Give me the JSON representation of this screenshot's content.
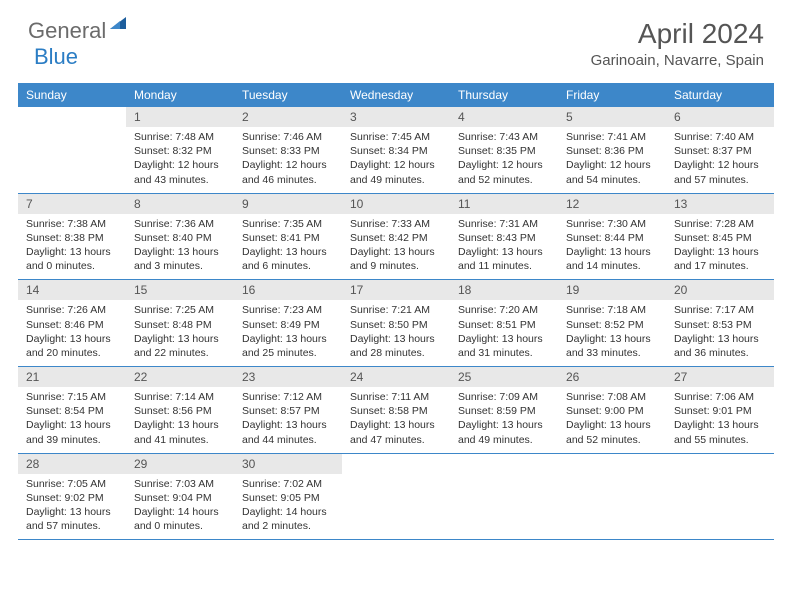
{
  "logo": {
    "gray": "General",
    "blue": "Blue"
  },
  "title": "April 2024",
  "location": "Garinoain, Navarre, Spain",
  "colors": {
    "header_bg": "#3d87c9",
    "header_text": "#ffffff",
    "daynum_bg": "#e8e8e8",
    "border": "#3d87c9",
    "logo_gray": "#6b6b6b",
    "logo_blue": "#2b7dc4"
  },
  "fonts": {
    "title_pt": 28,
    "location_pt": 15,
    "dayhead_pt": 12,
    "body_pt": 10.5
  },
  "day_headers": [
    "Sunday",
    "Monday",
    "Tuesday",
    "Wednesday",
    "Thursday",
    "Friday",
    "Saturday"
  ],
  "weeks": [
    [
      null,
      {
        "n": "1",
        "sr": "Sunrise: 7:48 AM",
        "ss": "Sunset: 8:32 PM",
        "dl": "Daylight: 12 hours and 43 minutes."
      },
      {
        "n": "2",
        "sr": "Sunrise: 7:46 AM",
        "ss": "Sunset: 8:33 PM",
        "dl": "Daylight: 12 hours and 46 minutes."
      },
      {
        "n": "3",
        "sr": "Sunrise: 7:45 AM",
        "ss": "Sunset: 8:34 PM",
        "dl": "Daylight: 12 hours and 49 minutes."
      },
      {
        "n": "4",
        "sr": "Sunrise: 7:43 AM",
        "ss": "Sunset: 8:35 PM",
        "dl": "Daylight: 12 hours and 52 minutes."
      },
      {
        "n": "5",
        "sr": "Sunrise: 7:41 AM",
        "ss": "Sunset: 8:36 PM",
        "dl": "Daylight: 12 hours and 54 minutes."
      },
      {
        "n": "6",
        "sr": "Sunrise: 7:40 AM",
        "ss": "Sunset: 8:37 PM",
        "dl": "Daylight: 12 hours and 57 minutes."
      }
    ],
    [
      {
        "n": "7",
        "sr": "Sunrise: 7:38 AM",
        "ss": "Sunset: 8:38 PM",
        "dl": "Daylight: 13 hours and 0 minutes."
      },
      {
        "n": "8",
        "sr": "Sunrise: 7:36 AM",
        "ss": "Sunset: 8:40 PM",
        "dl": "Daylight: 13 hours and 3 minutes."
      },
      {
        "n": "9",
        "sr": "Sunrise: 7:35 AM",
        "ss": "Sunset: 8:41 PM",
        "dl": "Daylight: 13 hours and 6 minutes."
      },
      {
        "n": "10",
        "sr": "Sunrise: 7:33 AM",
        "ss": "Sunset: 8:42 PM",
        "dl": "Daylight: 13 hours and 9 minutes."
      },
      {
        "n": "11",
        "sr": "Sunrise: 7:31 AM",
        "ss": "Sunset: 8:43 PM",
        "dl": "Daylight: 13 hours and 11 minutes."
      },
      {
        "n": "12",
        "sr": "Sunrise: 7:30 AM",
        "ss": "Sunset: 8:44 PM",
        "dl": "Daylight: 13 hours and 14 minutes."
      },
      {
        "n": "13",
        "sr": "Sunrise: 7:28 AM",
        "ss": "Sunset: 8:45 PM",
        "dl": "Daylight: 13 hours and 17 minutes."
      }
    ],
    [
      {
        "n": "14",
        "sr": "Sunrise: 7:26 AM",
        "ss": "Sunset: 8:46 PM",
        "dl": "Daylight: 13 hours and 20 minutes."
      },
      {
        "n": "15",
        "sr": "Sunrise: 7:25 AM",
        "ss": "Sunset: 8:48 PM",
        "dl": "Daylight: 13 hours and 22 minutes."
      },
      {
        "n": "16",
        "sr": "Sunrise: 7:23 AM",
        "ss": "Sunset: 8:49 PM",
        "dl": "Daylight: 13 hours and 25 minutes."
      },
      {
        "n": "17",
        "sr": "Sunrise: 7:21 AM",
        "ss": "Sunset: 8:50 PM",
        "dl": "Daylight: 13 hours and 28 minutes."
      },
      {
        "n": "18",
        "sr": "Sunrise: 7:20 AM",
        "ss": "Sunset: 8:51 PM",
        "dl": "Daylight: 13 hours and 31 minutes."
      },
      {
        "n": "19",
        "sr": "Sunrise: 7:18 AM",
        "ss": "Sunset: 8:52 PM",
        "dl": "Daylight: 13 hours and 33 minutes."
      },
      {
        "n": "20",
        "sr": "Sunrise: 7:17 AM",
        "ss": "Sunset: 8:53 PM",
        "dl": "Daylight: 13 hours and 36 minutes."
      }
    ],
    [
      {
        "n": "21",
        "sr": "Sunrise: 7:15 AM",
        "ss": "Sunset: 8:54 PM",
        "dl": "Daylight: 13 hours and 39 minutes."
      },
      {
        "n": "22",
        "sr": "Sunrise: 7:14 AM",
        "ss": "Sunset: 8:56 PM",
        "dl": "Daylight: 13 hours and 41 minutes."
      },
      {
        "n": "23",
        "sr": "Sunrise: 7:12 AM",
        "ss": "Sunset: 8:57 PM",
        "dl": "Daylight: 13 hours and 44 minutes."
      },
      {
        "n": "24",
        "sr": "Sunrise: 7:11 AM",
        "ss": "Sunset: 8:58 PM",
        "dl": "Daylight: 13 hours and 47 minutes."
      },
      {
        "n": "25",
        "sr": "Sunrise: 7:09 AM",
        "ss": "Sunset: 8:59 PM",
        "dl": "Daylight: 13 hours and 49 minutes."
      },
      {
        "n": "26",
        "sr": "Sunrise: 7:08 AM",
        "ss": "Sunset: 9:00 PM",
        "dl": "Daylight: 13 hours and 52 minutes."
      },
      {
        "n": "27",
        "sr": "Sunrise: 7:06 AM",
        "ss": "Sunset: 9:01 PM",
        "dl": "Daylight: 13 hours and 55 minutes."
      }
    ],
    [
      {
        "n": "28",
        "sr": "Sunrise: 7:05 AM",
        "ss": "Sunset: 9:02 PM",
        "dl": "Daylight: 13 hours and 57 minutes."
      },
      {
        "n": "29",
        "sr": "Sunrise: 7:03 AM",
        "ss": "Sunset: 9:04 PM",
        "dl": "Daylight: 14 hours and 0 minutes."
      },
      {
        "n": "30",
        "sr": "Sunrise: 7:02 AM",
        "ss": "Sunset: 9:05 PM",
        "dl": "Daylight: 14 hours and 2 minutes."
      },
      null,
      null,
      null,
      null
    ]
  ]
}
